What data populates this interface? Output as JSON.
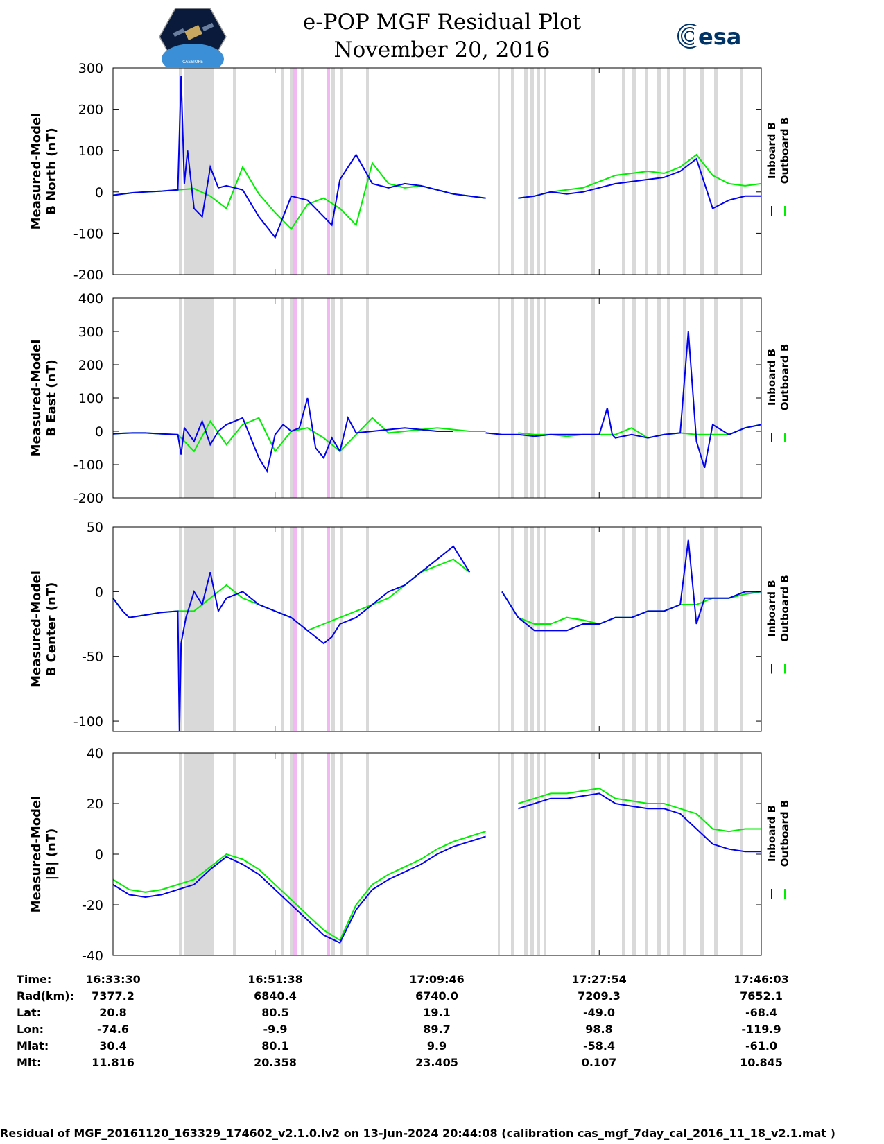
{
  "header": {
    "title_line1": "e-POP MGF Residual Plot",
    "title_line2": "November 20, 2016",
    "logo_right_text": "esa",
    "logo_left_text": "CASSIOPE"
  },
  "chart_data": [
    {
      "type": "line",
      "ylabel_line1": "Measured-Model",
      "ylabel_line2": "B North (nT)",
      "ylim": [
        -200,
        300
      ],
      "yticks": [
        "300",
        "200",
        "100",
        "0",
        "-100",
        "-200"
      ],
      "legend": [
        "Inboard B",
        "Outboard B"
      ],
      "series": [
        {
          "name": "Outboard B",
          "color": "#00ee00",
          "x": [
            0,
            0.06,
            0.12,
            0.2,
            0.3,
            0.4,
            0.5,
            0.6,
            0.7,
            0.8,
            0.9,
            1.0,
            1.1,
            1.2,
            1.3,
            1.4,
            1.5,
            1.6,
            1.7,
            1.8,
            1.9,
            2.0,
            2.1,
            2.2,
            2.3,
            2.4,
            2.5,
            2.6,
            2.7,
            2.8,
            2.9,
            3.0,
            3.1,
            3.2,
            3.3,
            3.4,
            3.5,
            3.6,
            3.7,
            3.8,
            3.9,
            4.0
          ],
          "y": [
            -8,
            -5,
            -2,
            0,
            2,
            5,
            8,
            -10,
            -40,
            60,
            -5,
            -50,
            -90,
            -30,
            -15,
            -40,
            -80,
            70,
            20,
            10,
            15,
            5,
            -5,
            -10,
            -15,
            null,
            -15,
            -10,
            0,
            5,
            10,
            25,
            40,
            45,
            50,
            45,
            60,
            90,
            40,
            20,
            15,
            20
          ]
        },
        {
          "name": "Inboard B",
          "color": "#0000ee",
          "x": [
            0,
            0.06,
            0.12,
            0.2,
            0.3,
            0.4,
            0.42,
            0.44,
            0.46,
            0.5,
            0.55,
            0.6,
            0.65,
            0.7,
            0.8,
            0.9,
            1.0,
            1.1,
            1.2,
            1.3,
            1.35,
            1.4,
            1.5,
            1.6,
            1.7,
            1.8,
            1.9,
            2.0,
            2.1,
            2.2,
            2.3,
            2.4,
            2.5,
            2.6,
            2.7,
            2.8,
            2.9,
            3.0,
            3.1,
            3.2,
            3.3,
            3.4,
            3.5,
            3.6,
            3.7,
            3.8,
            3.9,
            4.0
          ],
          "y": [
            -8,
            -5,
            -2,
            0,
            2,
            5,
            280,
            20,
            100,
            -40,
            -60,
            60,
            10,
            15,
            5,
            -60,
            -110,
            -10,
            -20,
            -60,
            -80,
            30,
            90,
            20,
            10,
            20,
            15,
            5,
            -5,
            -10,
            -15,
            null,
            -15,
            -10,
            0,
            -5,
            0,
            10,
            20,
            25,
            30,
            35,
            50,
            80,
            -40,
            -20,
            -10,
            -10
          ]
        }
      ]
    },
    {
      "type": "line",
      "ylabel_line1": "Measured-Model",
      "ylabel_line2": "B East (nT)",
      "ylim": [
        -200,
        400
      ],
      "yticks": [
        "400",
        "300",
        "200",
        "100",
        "0",
        "-100",
        "-200"
      ],
      "legend": [
        "Inboard B",
        "Outboard B"
      ],
      "series": [
        {
          "name": "Outboard B",
          "color": "#00ee00",
          "x": [
            0,
            0.06,
            0.12,
            0.2,
            0.3,
            0.4,
            0.5,
            0.6,
            0.7,
            0.8,
            0.9,
            1.0,
            1.1,
            1.2,
            1.3,
            1.4,
            1.5,
            1.6,
            1.7,
            1.8,
            1.9,
            2.0,
            2.1,
            2.2,
            2.3,
            2.4,
            2.5,
            2.6,
            2.7,
            2.8,
            2.9,
            3.0,
            3.1,
            3.2,
            3.3,
            3.4,
            3.5,
            3.6,
            3.7,
            3.8,
            3.9,
            4.0
          ],
          "y": [
            -8,
            -6,
            -5,
            -5,
            -8,
            -10,
            -60,
            30,
            -40,
            20,
            40,
            -60,
            0,
            10,
            -20,
            -60,
            -10,
            40,
            -5,
            0,
            5,
            10,
            5,
            0,
            0,
            null,
            -5,
            -10,
            -10,
            -15,
            -10,
            -10,
            -10,
            10,
            -20,
            -10,
            -5,
            -10,
            -10,
            -10,
            10,
            20
          ]
        },
        {
          "name": "Inboard B",
          "color": "#0000ee",
          "x": [
            0,
            0.06,
            0.12,
            0.2,
            0.3,
            0.4,
            0.42,
            0.44,
            0.5,
            0.55,
            0.6,
            0.65,
            0.7,
            0.8,
            0.9,
            0.95,
            1.0,
            1.05,
            1.1,
            1.15,
            1.2,
            1.25,
            1.3,
            1.35,
            1.4,
            1.45,
            1.5,
            1.6,
            1.7,
            1.8,
            1.9,
            2.0,
            2.1,
            2.2,
            2.3,
            2.4,
            2.5,
            2.6,
            2.7,
            2.8,
            2.9,
            3.0,
            3.05,
            3.08,
            3.1,
            3.2,
            3.3,
            3.4,
            3.5,
            3.55,
            3.6,
            3.65,
            3.7,
            3.8,
            3.9,
            4.0
          ],
          "y": [
            -8,
            -6,
            -5,
            -5,
            -8,
            -10,
            -70,
            10,
            -30,
            30,
            -40,
            0,
            20,
            40,
            -80,
            -120,
            -10,
            20,
            0,
            10,
            100,
            -50,
            -80,
            -20,
            -60,
            40,
            -5,
            0,
            5,
            10,
            5,
            0,
            0,
            null,
            -5,
            -10,
            -10,
            -15,
            -10,
            -10,
            -10,
            -10,
            70,
            -10,
            -20,
            -10,
            -20,
            -10,
            -5,
            300,
            -30,
            -110,
            20,
            -10,
            10,
            20
          ]
        }
      ]
    },
    {
      "type": "line",
      "ylabel_line1": "Measured-Model",
      "ylabel_line2": "B Center (nT)",
      "ylim": [
        -108,
        50
      ],
      "yticks": [
        "50",
        "0",
        "-50",
        "-100"
      ],
      "legend": [
        "Inboard B",
        "Outboard B"
      ],
      "series": [
        {
          "name": "Outboard B",
          "color": "#00ee00",
          "x": [
            0,
            0.03,
            0.06,
            0.1,
            0.2,
            0.3,
            0.4,
            0.5,
            0.6,
            0.7,
            0.8,
            0.9,
            1.0,
            1.1,
            1.2,
            1.3,
            1.4,
            1.5,
            1.6,
            1.7,
            1.8,
            1.9,
            2.0,
            2.1,
            2.2,
            2.3,
            2.4,
            2.5,
            2.6,
            2.7,
            2.8,
            2.9,
            3.0,
            3.1,
            3.2,
            3.3,
            3.4,
            3.5,
            3.6,
            3.7,
            3.8,
            3.9,
            4.0
          ],
          "y": [
            -5,
            -10,
            -15,
            -20,
            -18,
            -16,
            -15,
            -15,
            -5,
            5,
            -5,
            -10,
            -15,
            -20,
            -30,
            -25,
            -20,
            -15,
            -10,
            -5,
            5,
            15,
            20,
            25,
            15,
            null,
            0,
            -20,
            -25,
            -25,
            -20,
            -22,
            -25,
            -20,
            -20,
            -15,
            -15,
            -10,
            -10,
            -5,
            -5,
            -2,
            0
          ]
        },
        {
          "name": "Inboard B",
          "color": "#0000ee",
          "x": [
            0,
            0.03,
            0.06,
            0.1,
            0.2,
            0.3,
            0.4,
            0.41,
            0.42,
            0.45,
            0.5,
            0.55,
            0.6,
            0.65,
            0.7,
            0.8,
            0.9,
            1.0,
            1.1,
            1.2,
            1.3,
            1.35,
            1.4,
            1.5,
            1.6,
            1.7,
            1.8,
            1.9,
            2.0,
            2.1,
            2.2,
            2.3,
            2.4,
            2.5,
            2.6,
            2.7,
            2.8,
            2.9,
            3.0,
            3.1,
            3.2,
            3.3,
            3.4,
            3.5,
            3.55,
            3.6,
            3.65,
            3.7,
            3.8,
            3.9,
            4.0
          ],
          "y": [
            -5,
            -10,
            -15,
            -20,
            -18,
            -16,
            -15,
            -108,
            -40,
            -20,
            0,
            -10,
            15,
            -15,
            -5,
            0,
            -10,
            -15,
            -20,
            -30,
            -40,
            -35,
            -25,
            -20,
            -10,
            0,
            5,
            15,
            25,
            35,
            15,
            null,
            0,
            -20,
            -30,
            -30,
            -30,
            -25,
            -25,
            -20,
            -20,
            -15,
            -15,
            -10,
            40,
            -25,
            -5,
            -5,
            -5,
            0,
            0
          ]
        }
      ]
    },
    {
      "type": "line",
      "ylabel_line1": "Measured-Model",
      "ylabel_line2": "|B| (nT)",
      "ylim": [
        -40,
        40
      ],
      "yticks": [
        "40",
        "20",
        "0",
        "-20",
        "-40"
      ],
      "legend": [
        "Inboard B",
        "Outboard B"
      ],
      "series": [
        {
          "name": "Outboard B",
          "color": "#00ee00",
          "x": [
            0,
            0.05,
            0.1,
            0.2,
            0.3,
            0.4,
            0.5,
            0.6,
            0.7,
            0.8,
            0.9,
            1.0,
            1.1,
            1.2,
            1.3,
            1.4,
            1.5,
            1.6,
            1.7,
            1.8,
            1.9,
            2.0,
            2.1,
            2.2,
            2.3,
            2.4,
            2.5,
            2.6,
            2.7,
            2.8,
            2.9,
            3.0,
            3.1,
            3.2,
            3.3,
            3.4,
            3.5,
            3.6,
            3.7,
            3.8,
            3.9,
            4.0
          ],
          "y": [
            -10,
            -12,
            -14,
            -15,
            -14,
            -12,
            -10,
            -5,
            0,
            -2,
            -6,
            -12,
            -18,
            -24,
            -30,
            -34,
            -20,
            -12,
            -8,
            -5,
            -2,
            2,
            5,
            7,
            9,
            null,
            20,
            22,
            24,
            24,
            25,
            26,
            22,
            21,
            20,
            20,
            18,
            16,
            10,
            9,
            10,
            10
          ]
        },
        {
          "name": "Inboard B",
          "color": "#0000ee",
          "x": [
            0,
            0.05,
            0.1,
            0.2,
            0.3,
            0.4,
            0.5,
            0.6,
            0.7,
            0.8,
            0.9,
            1.0,
            1.1,
            1.2,
            1.3,
            1.4,
            1.5,
            1.6,
            1.7,
            1.8,
            1.9,
            2.0,
            2.1,
            2.2,
            2.3,
            2.4,
            2.5,
            2.6,
            2.7,
            2.8,
            2.9,
            3.0,
            3.1,
            3.2,
            3.3,
            3.4,
            3.5,
            3.6,
            3.7,
            3.8,
            3.9,
            4.0
          ],
          "y": [
            -12,
            -14,
            -16,
            -17,
            -16,
            -14,
            -12,
            -6,
            -1,
            -4,
            -8,
            -14,
            -20,
            -26,
            -32,
            -35,
            -22,
            -14,
            -10,
            -7,
            -4,
            0,
            3,
            5,
            7,
            null,
            18,
            20,
            22,
            22,
            23,
            24,
            20,
            19,
            18,
            18,
            16,
            10,
            4,
            2,
            1,
            1
          ]
        }
      ]
    }
  ],
  "x_axis": {
    "tick_count": 5
  },
  "info": {
    "labels": [
      "Time:",
      "Rad(km):",
      "Lat:",
      "Lon:",
      "Mlat:",
      "Mlt:"
    ],
    "columns": [
      [
        "16:33:30",
        "7377.2",
        "20.8",
        "-74.6",
        "30.4",
        "11.816"
      ],
      [
        "16:51:38",
        "6840.4",
        "80.5",
        "-9.9",
        "80.1",
        "20.358"
      ],
      [
        "17:09:46",
        "6740.0",
        "19.1",
        "89.7",
        "9.9",
        "23.405"
      ],
      [
        "17:27:54",
        "7209.3",
        "-49.0",
        "98.8",
        "-58.4",
        "0.107"
      ],
      [
        "17:46:03",
        "7652.1",
        "-68.4",
        "-119.9",
        "-61.0",
        "10.845"
      ]
    ]
  },
  "footer": "Residual of MGF_20161120_163329_174602_v2.1.0.lv2 on 13-Jun-2024 20:44:08 (calibration cas_mgf_7day_cal_2016_11_18_v2.1.mat )"
}
